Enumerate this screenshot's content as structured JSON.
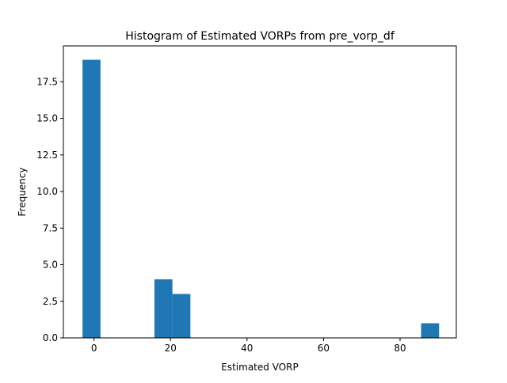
{
  "chart_data": {
    "type": "bar",
    "title": "Histogram of Estimated VORPs from pre_vorp_df",
    "xlabel": "Estimated VORP",
    "ylabel": "Frequency",
    "xlim": [
      -8.0,
      94.7
    ],
    "ylim": [
      0,
      19.95
    ],
    "xticks": [
      0,
      20,
      40,
      60,
      80
    ],
    "yticks": [
      0.0,
      2.5,
      5.0,
      7.5,
      10.0,
      12.5,
      15.0,
      17.5
    ],
    "xtick_labels": [
      "0",
      "20",
      "40",
      "60",
      "80"
    ],
    "ytick_labels": [
      "0.0",
      "2.5",
      "5.0",
      "7.5",
      "10.0",
      "12.5",
      "15.0",
      "17.5"
    ],
    "bins": [
      {
        "x0": -3.0,
        "x1": 1.7,
        "count": 19
      },
      {
        "x0": 15.8,
        "x1": 20.5,
        "count": 4
      },
      {
        "x0": 20.5,
        "x1": 25.2,
        "count": 3
      },
      {
        "x0": 85.5,
        "x1": 90.2,
        "count": 1
      }
    ],
    "bar_color": "#1f77b4",
    "grid": false,
    "legend": "none"
  }
}
